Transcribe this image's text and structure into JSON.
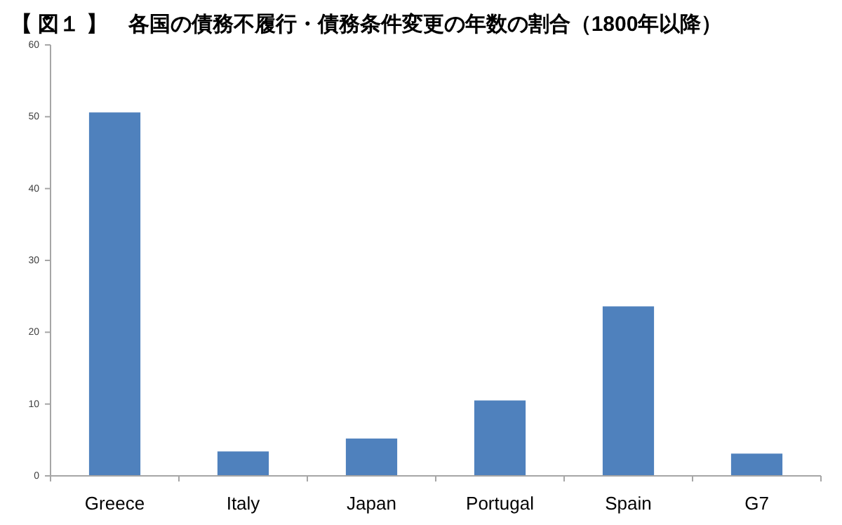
{
  "chart_data": {
    "type": "bar",
    "title": "【 図１ 】　各国の債務不履行・債務条件変更の年数の割合（1800年以降）",
    "categories": [
      "Greece",
      "Italy",
      "Japan",
      "Portugal",
      "Spain",
      "G7"
    ],
    "values": [
      50.6,
      3.4,
      5.2,
      10.5,
      23.6,
      3.1
    ],
    "color": "#4f81bd",
    "ylim": [
      0,
      60
    ],
    "yticks": [
      0,
      10,
      20,
      30,
      40,
      50,
      60
    ],
    "grid": false
  }
}
